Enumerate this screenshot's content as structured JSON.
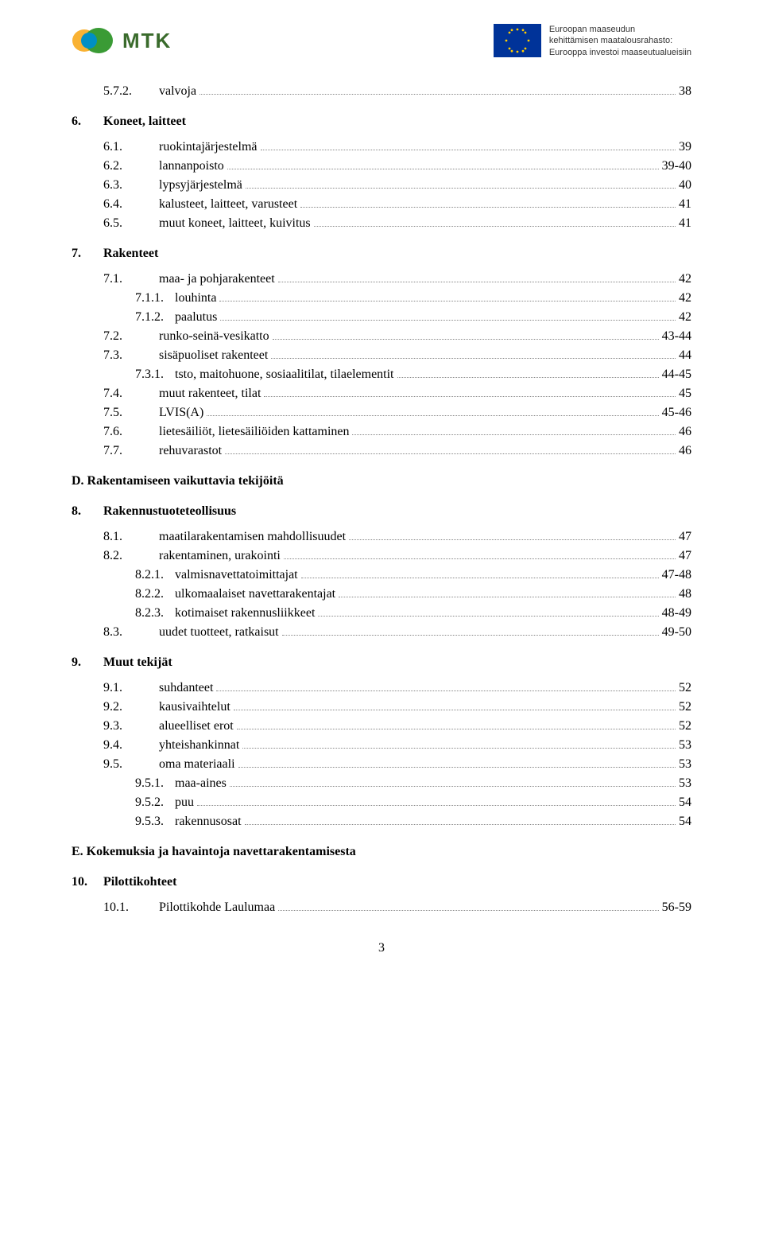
{
  "header": {
    "mtk": "MTK",
    "eu_line1": "Euroopan maaseudun",
    "eu_line2": "kehittämisen maatalousrahasto:",
    "eu_line3": "Eurooppa investoi maaseutualueisiin"
  },
  "entries": [
    {
      "type": "row",
      "indent": 1,
      "num": "5.7.2.",
      "label": "valvoja",
      "page": "38"
    },
    {
      "type": "heading",
      "num": "6.",
      "label": "Koneet, laitteet"
    },
    {
      "type": "row",
      "indent": 1,
      "num": "6.1.",
      "label": "ruokintajärjestelmä",
      "page": "39"
    },
    {
      "type": "row",
      "indent": 1,
      "num": "6.2.",
      "label": "lannanpoisto",
      "page": "39-40"
    },
    {
      "type": "row",
      "indent": 1,
      "num": "6.3.",
      "label": "lypsyjärjestelmä",
      "page": "40"
    },
    {
      "type": "row",
      "indent": 1,
      "num": "6.4.",
      "label": "kalusteet, laitteet, varusteet",
      "page": "41"
    },
    {
      "type": "row",
      "indent": 1,
      "num": "6.5.",
      "label": "muut koneet, laitteet, kuivitus",
      "page": "41"
    },
    {
      "type": "heading",
      "num": "7.",
      "label": "Rakenteet"
    },
    {
      "type": "row",
      "indent": 1,
      "num": "7.1.",
      "label": "maa- ja pohjarakenteet",
      "page": "42"
    },
    {
      "type": "row",
      "indent": 2,
      "num": "7.1.1.",
      "label": "louhinta",
      "page": "42"
    },
    {
      "type": "row",
      "indent": 2,
      "num": "7.1.2.",
      "label": "paalutus",
      "page": "42"
    },
    {
      "type": "row",
      "indent": 1,
      "num": "7.2.",
      "label": "runko-seinä-vesikatto",
      "page": "43-44"
    },
    {
      "type": "row",
      "indent": 1,
      "num": "7.3.",
      "label": "sisäpuoliset rakenteet",
      "page": "44"
    },
    {
      "type": "row",
      "indent": 2,
      "num": "7.3.1.",
      "label": "tsto, maitohuone, sosiaalitilat, tilaelementit",
      "page": "44-45"
    },
    {
      "type": "row",
      "indent": 1,
      "num": "7.4.",
      "label": "muut rakenteet, tilat",
      "page": "45"
    },
    {
      "type": "row",
      "indent": 1,
      "num": "7.5.",
      "label": "LVIS(A)",
      "page": "45-46"
    },
    {
      "type": "row",
      "indent": 1,
      "num": "7.6.",
      "label": "lietesäiliöt, lietesäiliöiden kattaminen",
      "page": "46"
    },
    {
      "type": "row",
      "indent": 1,
      "num": "7.7.",
      "label": "rehuvarastot",
      "page": "46"
    },
    {
      "type": "section",
      "label": "D. Rakentamiseen vaikuttavia tekijöitä"
    },
    {
      "type": "heading",
      "num": "8.",
      "label": "Rakennustuoteteollisuus"
    },
    {
      "type": "row",
      "indent": 1,
      "num": "8.1.",
      "label": "maatilarakentamisen mahdollisuudet",
      "page": "47"
    },
    {
      "type": "row",
      "indent": 1,
      "num": "8.2.",
      "label": "rakentaminen, urakointi",
      "page": "47"
    },
    {
      "type": "row",
      "indent": 2,
      "num": "8.2.1.",
      "label": "valmisnavettatoimittajat",
      "page": "47-48"
    },
    {
      "type": "row",
      "indent": 2,
      "num": "8.2.2.",
      "label": "ulkomaalaiset navettarakentajat",
      "page": "48"
    },
    {
      "type": "row",
      "indent": 2,
      "num": "8.2.3.",
      "label": "kotimaiset rakennusliikkeet",
      "page": "48-49"
    },
    {
      "type": "row",
      "indent": 1,
      "num": "8.3.",
      "label": "uudet tuotteet, ratkaisut",
      "page": "49-50"
    },
    {
      "type": "heading",
      "num": "9.",
      "label": "Muut tekijät"
    },
    {
      "type": "row",
      "indent": 1,
      "num": "9.1.",
      "label": "suhdanteet",
      "page": "52"
    },
    {
      "type": "row",
      "indent": 1,
      "num": "9.2.",
      "label": "kausivaihtelut",
      "page": "52"
    },
    {
      "type": "row",
      "indent": 1,
      "num": "9.3.",
      "label": "alueelliset erot",
      "page": "52"
    },
    {
      "type": "row",
      "indent": 1,
      "num": "9.4.",
      "label": "yhteishankinnat",
      "page": "53"
    },
    {
      "type": "row",
      "indent": 1,
      "num": "9.5.",
      "label": "oma materiaali",
      "page": "53"
    },
    {
      "type": "row",
      "indent": 2,
      "num": "9.5.1.",
      "label": "maa-aines",
      "page": "53"
    },
    {
      "type": "row",
      "indent": 2,
      "num": "9.5.2.",
      "label": "puu",
      "page": "54"
    },
    {
      "type": "row",
      "indent": 2,
      "num": "9.5.3.",
      "label": "rakennusosat",
      "page": "54"
    },
    {
      "type": "section",
      "label": "E. Kokemuksia ja havaintoja  navettarakentamisesta"
    },
    {
      "type": "heading",
      "num": "10.",
      "label": "Pilottikohteet"
    },
    {
      "type": "row",
      "indent": 1,
      "num": "10.1.",
      "label": "Pilottikohde Laulumaa",
      "page": "56-59"
    }
  ],
  "footer_page": "3"
}
